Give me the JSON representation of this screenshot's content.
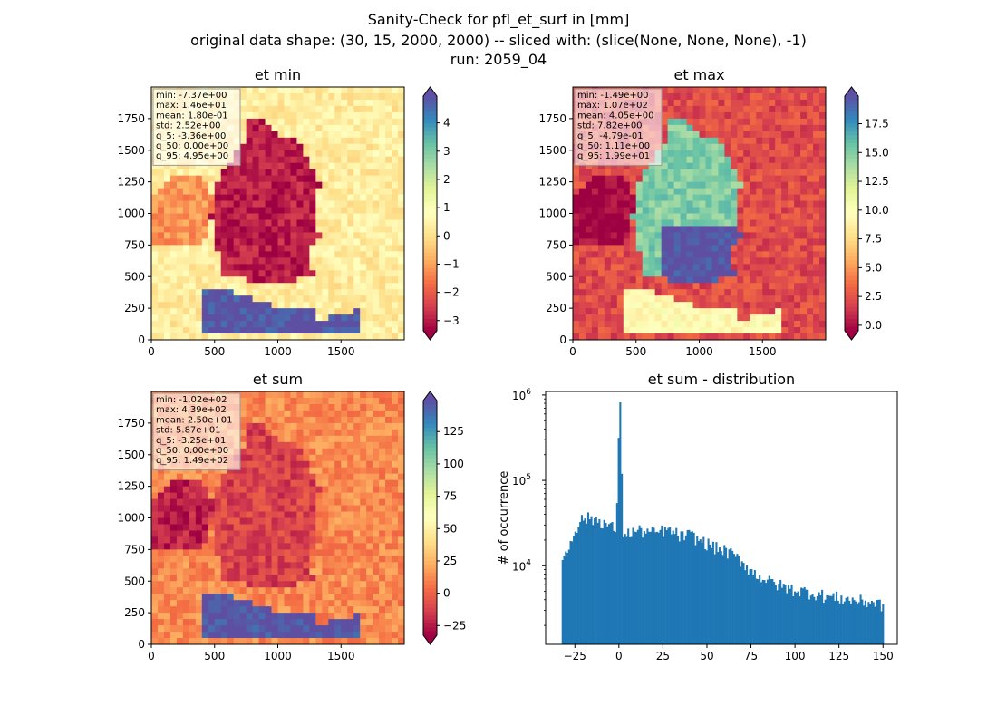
{
  "figure": {
    "suptitle_lines": [
      "Sanity-Check for pfl_et_surf in [mm]",
      "original data shape: (30, 15, 2000, 2000) -- sliced with: (slice(None, None, None), -1)",
      "run: 2059_04"
    ]
  },
  "colormap_stops": [
    "#9e0142",
    "#d53e4f",
    "#f46d43",
    "#fdae61",
    "#fee08b",
    "#ffffbf",
    "#e6f598",
    "#abdda4",
    "#66c2a5",
    "#3288bd",
    "#5e4fa2"
  ],
  "chart_data": [
    {
      "id": "et_min",
      "type": "heatmap",
      "title": "et min",
      "xlim": [
        0,
        2000
      ],
      "ylim": [
        0,
        2000
      ],
      "xticks": [
        0,
        500,
        1000,
        1500
      ],
      "yticks": [
        0,
        250,
        500,
        750,
        1000,
        1250,
        1500,
        1750
      ],
      "colorbar": {
        "vmin": -3.36,
        "vmax": 4.95,
        "ticks": [
          -3,
          -2,
          -1,
          0,
          1,
          2,
          3,
          4
        ],
        "tick_labels": [
          "−3",
          "−2",
          "−1",
          "0",
          "1",
          "2",
          "3",
          "4"
        ],
        "extend": "both"
      },
      "stats": [
        "min: -7.37e+00",
        "max: 1.46e+01",
        "mean: 1.80e-01",
        "std: 2.52e+00",
        "q_5: -3.36e+00",
        "q_50: 0.00e+00",
        "q_95: 4.95e+00"
      ],
      "regions": {
        "germany": -3.0,
        "alps": 4.95,
        "france_block": -1.2,
        "background": 0.3
      }
    },
    {
      "id": "et_max",
      "type": "heatmap",
      "title": "et max",
      "xlim": [
        0,
        2000
      ],
      "ylim": [
        0,
        2000
      ],
      "xticks": [
        0,
        500,
        1000,
        1500
      ],
      "yticks": [
        0,
        250,
        500,
        750,
        1000,
        1250,
        1500,
        1750
      ],
      "colorbar": {
        "vmin": -0.479,
        "vmax": 19.9,
        "ticks": [
          0.0,
          2.5,
          5.0,
          7.5,
          10.0,
          12.5,
          15.0,
          17.5
        ],
        "tick_labels": [
          "0.0",
          "2.5",
          "5.0",
          "7.5",
          "10.0",
          "12.5",
          "15.0",
          "17.5"
        ],
        "extend": "both"
      },
      "stats": [
        "min: -1.49e+00",
        "max: 1.07e+02",
        "mean: 4.05e+00",
        "std: 7.82e+00",
        "q_5: -4.79e-01",
        "q_50: 1.11e+00",
        "q_95: 1.99e+01"
      ],
      "regions": {
        "germany": 15.0,
        "bavaria": 19.9,
        "alps": 9.5,
        "france_block": -0.4,
        "background": 2.2
      }
    },
    {
      "id": "et_sum",
      "type": "heatmap",
      "title": "et sum",
      "xlim": [
        0,
        2000
      ],
      "ylim": [
        0,
        2000
      ],
      "xticks": [
        0,
        500,
        1000,
        1500
      ],
      "yticks": [
        0,
        250,
        500,
        750,
        1000,
        1250,
        1500,
        1750
      ],
      "colorbar": {
        "vmin": -32.5,
        "vmax": 149,
        "ticks": [
          -25,
          0,
          25,
          50,
          75,
          100,
          125
        ],
        "tick_labels": [
          "−25",
          "0",
          "25",
          "50",
          "75",
          "100",
          "125"
        ],
        "extend": "both"
      },
      "stats": [
        "min: -1.02e+02",
        "max: 4.39e+02",
        "mean: 2.50e+01",
        "std: 5.87e+01",
        "q_5: -3.25e+01",
        "q_50: 0.00e+00",
        "q_95: 1.49e+02"
      ],
      "regions": {
        "germany": -12.0,
        "alps": 149,
        "france_block": -24.0,
        "background": 12.0
      }
    },
    {
      "id": "et_sum_distribution",
      "type": "bar",
      "title": "et sum - distribution",
      "ylabel": "# of occurrence",
      "yscale": "log",
      "xlim": [
        -41.6,
        158.1
      ],
      "ylim": [
        1200,
        1100000
      ],
      "xticks": [
        -25,
        0,
        25,
        50,
        75,
        100,
        125,
        150
      ],
      "xtick_labels": [
        "−25",
        "0",
        "25",
        "50",
        "75",
        "100",
        "125",
        "150"
      ],
      "yticks": [
        10000,
        100000,
        1000000
      ],
      "ytick_labels": [
        [
          "10",
          "4"
        ],
        [
          "10",
          "5"
        ],
        [
          "10",
          "6"
        ]
      ],
      "bar_color": "#1f77b4",
      "x_start": -32.5,
      "bin_width": 0.91,
      "bins": [
        {
          "x": -32.5,
          "y": 12500
        },
        {
          "x": -30,
          "y": 14000
        },
        {
          "x": -28,
          "y": 19000
        },
        {
          "x": -26,
          "y": 25000
        },
        {
          "x": -24,
          "y": 30000
        },
        {
          "x": -22,
          "y": 34000
        },
        {
          "x": -20,
          "y": 36500
        },
        {
          "x": -18,
          "y": 36000
        },
        {
          "x": -16,
          "y": 35000
        },
        {
          "x": -14,
          "y": 35500
        },
        {
          "x": -12,
          "y": 34000
        },
        {
          "x": -10,
          "y": 33000
        },
        {
          "x": -8,
          "y": 31000
        },
        {
          "x": -6,
          "y": 29000
        },
        {
          "x": -4,
          "y": 28000
        },
        {
          "x": -2,
          "y": 27000
        },
        {
          "x": 0,
          "y": 820000
        },
        {
          "x": 2,
          "y": 25000
        },
        {
          "x": 5,
          "y": 24000
        },
        {
          "x": 10,
          "y": 26000
        },
        {
          "x": 15,
          "y": 25000
        },
        {
          "x": 20,
          "y": 24000
        },
        {
          "x": 25,
          "y": 26000
        },
        {
          "x": 30,
          "y": 25000
        },
        {
          "x": 35,
          "y": 22000
        },
        {
          "x": 40,
          "y": 23000
        },
        {
          "x": 45,
          "y": 20000
        },
        {
          "x": 50,
          "y": 18000
        },
        {
          "x": 55,
          "y": 16000
        },
        {
          "x": 60,
          "y": 15000
        },
        {
          "x": 65,
          "y": 13000
        },
        {
          "x": 70,
          "y": 11000
        },
        {
          "x": 75,
          "y": 8500
        },
        {
          "x": 80,
          "y": 7500
        },
        {
          "x": 85,
          "y": 6500
        },
        {
          "x": 90,
          "y": 6000
        },
        {
          "x": 95,
          "y": 5500
        },
        {
          "x": 100,
          "y": 5200
        },
        {
          "x": 105,
          "y": 5000
        },
        {
          "x": 110,
          "y": 4800
        },
        {
          "x": 115,
          "y": 4500
        },
        {
          "x": 120,
          "y": 4300
        },
        {
          "x": 125,
          "y": 4200
        },
        {
          "x": 130,
          "y": 4000
        },
        {
          "x": 135,
          "y": 3900
        },
        {
          "x": 140,
          "y": 3800
        },
        {
          "x": 145,
          "y": 3700
        },
        {
          "x": 149,
          "y": 3500
        }
      ]
    }
  ]
}
